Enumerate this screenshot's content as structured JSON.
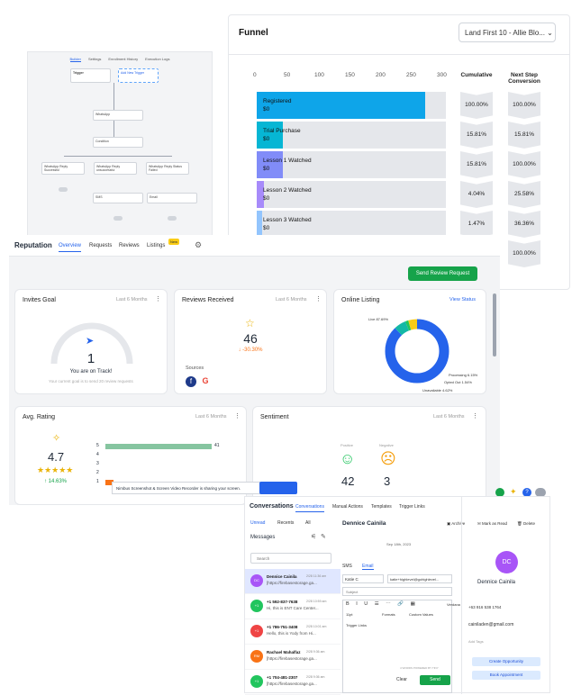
{
  "workflow": {
    "tabs": [
      "Builder",
      "Settings",
      "Enrollment History",
      "Execution Logs"
    ],
    "nodes": {
      "trigger": "Trigger",
      "trigger_sub": "Calendar Booked\nappointment",
      "add_trigger": "Add New Trigger",
      "whatsapp": "WhatsApp",
      "condition": "Condition",
      "branch1": "WhatsApp Reply\nSuccessful",
      "branch2": "WhatsApp Reply\nunsuccessful",
      "branch3": "WhatsApp Reply Status\nFailed",
      "sms": "SMS",
      "email": "Email"
    }
  },
  "funnel": {
    "title": "Funnel",
    "selector": "Land First 10 - Allie Blo...",
    "axis_ticks": [
      "0",
      "50",
      "100",
      "150",
      "200",
      "250",
      "300"
    ],
    "col_cumulative": "Cumulative",
    "col_next": "Next Step Conversion",
    "stages": [
      {
        "name": "Registered",
        "value": "$0",
        "cumulative": "100.00%",
        "next": "100.00%",
        "fill": 0.89,
        "color": "#0ea5e9"
      },
      {
        "name": "Trial Purchase",
        "value": "$0",
        "cumulative": "15.81%",
        "next": "15.81%",
        "fill": 0.14,
        "color": "#06b6d4"
      },
      {
        "name": "Lesson 1 Watched",
        "value": "$0",
        "cumulative": "15.81%",
        "next": "100.00%",
        "fill": 0.14,
        "color": "#818cf8"
      },
      {
        "name": "Lesson 2 Watched",
        "value": "$0",
        "cumulative": "4.04%",
        "next": "25.58%",
        "fill": 0.04,
        "color": "#a78bfa"
      },
      {
        "name": "Lesson 3 Watched",
        "value": "$0",
        "cumulative": "1.47%",
        "next": "36.36%",
        "fill": 0.015,
        "color": "#93c5fd"
      }
    ],
    "last_next": "100.00%"
  },
  "reputation": {
    "title": "Reputation",
    "tabs": [
      "Overview",
      "Requests",
      "Reviews",
      "Listings"
    ],
    "new_badge": "New",
    "send_button": "Send Review Request",
    "invites": {
      "title": "Invites Goal",
      "range": "Last 6 Months",
      "value": "1",
      "status": "You are on Track!",
      "note": "Your current goal is to send 20 review requests"
    },
    "reviews": {
      "title": "Reviews Received",
      "range": "Last 6 Months",
      "value": "46",
      "change": "-30.30%",
      "sources_label": "Sources"
    },
    "listing": {
      "title": "Online Listing",
      "link": "View Status",
      "live": "Live 87.69%",
      "processing": "Processing 6.15%",
      "opted_out": "Opted Out 1.54%",
      "unavailable": "Unavailable 4.62%"
    },
    "rating": {
      "title": "Avg. Rating",
      "range": "Last 6 Months",
      "value": "4.7",
      "change": "14.63%",
      "rows": [
        {
          "star": "5",
          "count": "41",
          "fill": 1.0
        },
        {
          "star": "4",
          "count": "",
          "fill": 0
        },
        {
          "star": "3",
          "count": "",
          "fill": 0
        },
        {
          "star": "2",
          "count": "",
          "fill": 0
        },
        {
          "star": "1",
          "count": "",
          "fill": 0.08
        }
      ]
    },
    "sentiment": {
      "title": "Sentiment",
      "range": "Last 6 Months",
      "positive_label": "Positive",
      "negative_label": "Negative",
      "positive": "42",
      "negative": "3"
    },
    "share_notice": "Nimbus Screenshot & Screen Video Recorder is sharing your screen."
  },
  "conversations": {
    "title": "Conversations",
    "tabs": [
      "Conversations",
      "Manual Actions",
      "Templates",
      "Trigger Links"
    ],
    "filters": [
      "Unread",
      "Recents",
      "All"
    ],
    "messages_label": "Messages",
    "search_placeholder": "Search",
    "contact_name": "Dennice Cainila",
    "actions": [
      "Archive",
      "Mark as Read",
      "Delete"
    ],
    "date": "Sep 18th, 2023",
    "channel_tabs": [
      "SMS",
      "Email"
    ],
    "from": "Katie C",
    "to": "katie+highlevel@gohighlevel...",
    "subject_placeholder": "Subject",
    "font_size": "11pt",
    "formats": "Formats",
    "custom_values": "Custom Values",
    "trigger_links": "Trigger Links",
    "verdana": "Verdana",
    "powered": "4 WORDS POWERED BY TINY",
    "clear": "Clear",
    "send": "Send",
    "list": [
      {
        "name": "Dennice Cainila",
        "time": "2/28 11:36 am",
        "text": "[https://firebasestorage.ga...",
        "initials": "DC",
        "color": "#a855f7"
      },
      {
        "name": "+1 592-837-7638",
        "time": "2/28 10:59 am",
        "text": "Hi, this is ENT Care Center...",
        "initials": "+1",
        "color": "#22c55e"
      },
      {
        "name": "+1 786-751-3408",
        "time": "2/28 10:01 am",
        "text": "Hello, this is Yody from Hi...",
        "initials": "+1",
        "color": "#ef4444"
      },
      {
        "name": "Rachael Mahalfaz",
        "time": "2/28 9:36 am",
        "text": "[https://firebasestorage.ga...",
        "initials": "RM",
        "color": "#f97316"
      },
      {
        "name": "+1 704-481-2307",
        "time": "2/28 9:36 am",
        "text": "[https://firebasestorage.ga...",
        "initials": "+1",
        "color": "#22c55e"
      }
    ],
    "profile": {
      "initials": "DC",
      "name": "Dennice Cainila",
      "phone": "+63 916 538 1764",
      "email": "cainiladen@gmail.com",
      "tags": "Add Tags",
      "btn1": "Create Opportunity",
      "btn2": "Book Appointment"
    }
  }
}
